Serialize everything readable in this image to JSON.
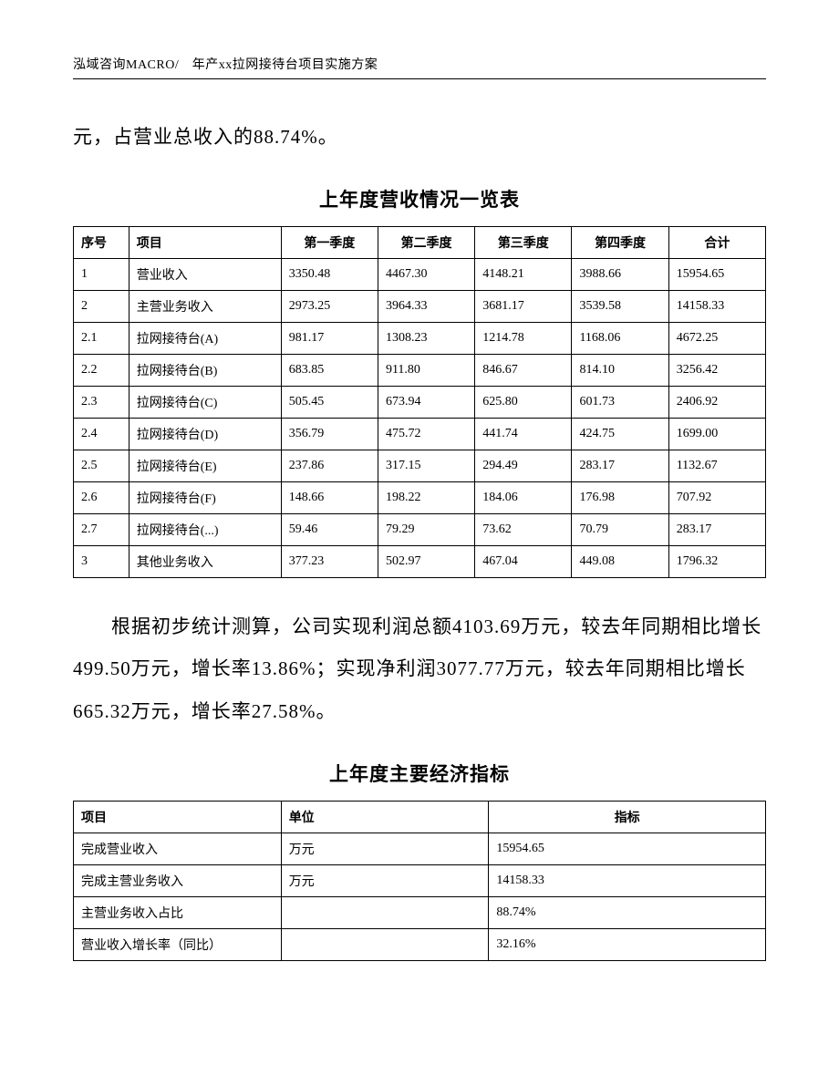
{
  "header": "泓域咨询MACRO/　年产xx拉网接待台项目实施方案",
  "body1": "元，占营业总收入的88.74%。",
  "table1_title": "上年度营收情况一览表",
  "table1": {
    "columns": [
      "序号",
      "项目",
      "第一季度",
      "第二季度",
      "第三季度",
      "第四季度",
      "合计"
    ],
    "rows": [
      [
        "1",
        "营业收入",
        "3350.48",
        "4467.30",
        "4148.21",
        "3988.66",
        "15954.65"
      ],
      [
        "2",
        "主营业务收入",
        "2973.25",
        "3964.33",
        "3681.17",
        "3539.58",
        "14158.33"
      ],
      [
        "2.1",
        "拉网接待台(A)",
        "981.17",
        "1308.23",
        "1214.78",
        "1168.06",
        "4672.25"
      ],
      [
        "2.2",
        "拉网接待台(B)",
        "683.85",
        "911.80",
        "846.67",
        "814.10",
        "3256.42"
      ],
      [
        "2.3",
        "拉网接待台(C)",
        "505.45",
        "673.94",
        "625.80",
        "601.73",
        "2406.92"
      ],
      [
        "2.4",
        "拉网接待台(D)",
        "356.79",
        "475.72",
        "441.74",
        "424.75",
        "1699.00"
      ],
      [
        "2.5",
        "拉网接待台(E)",
        "237.86",
        "317.15",
        "294.49",
        "283.17",
        "1132.67"
      ],
      [
        "2.6",
        "拉网接待台(F)",
        "148.66",
        "198.22",
        "184.06",
        "176.98",
        "707.92"
      ],
      [
        "2.7",
        "拉网接待台(...)",
        "59.46",
        "79.29",
        "73.62",
        "70.79",
        "283.17"
      ],
      [
        "3",
        "其他业务收入",
        "377.23",
        "502.97",
        "467.04",
        "449.08",
        "1796.32"
      ]
    ]
  },
  "body2": "根据初步统计测算，公司实现利润总额4103.69万元，较去年同期相比增长499.50万元，增长率13.86%；实现净利润3077.77万元，较去年同期相比增长665.32万元，增长率27.58%。",
  "table2_title": "上年度主要经济指标",
  "table2": {
    "columns": [
      "项目",
      "单位",
      "指标"
    ],
    "rows": [
      [
        "完成营业收入",
        "万元",
        "15954.65"
      ],
      [
        "完成主营业务收入",
        "万元",
        "14158.33"
      ],
      [
        "主营业务收入占比",
        "",
        "88.74%"
      ],
      [
        "营业收入增长率（同比）",
        "",
        "32.16%"
      ]
    ]
  }
}
